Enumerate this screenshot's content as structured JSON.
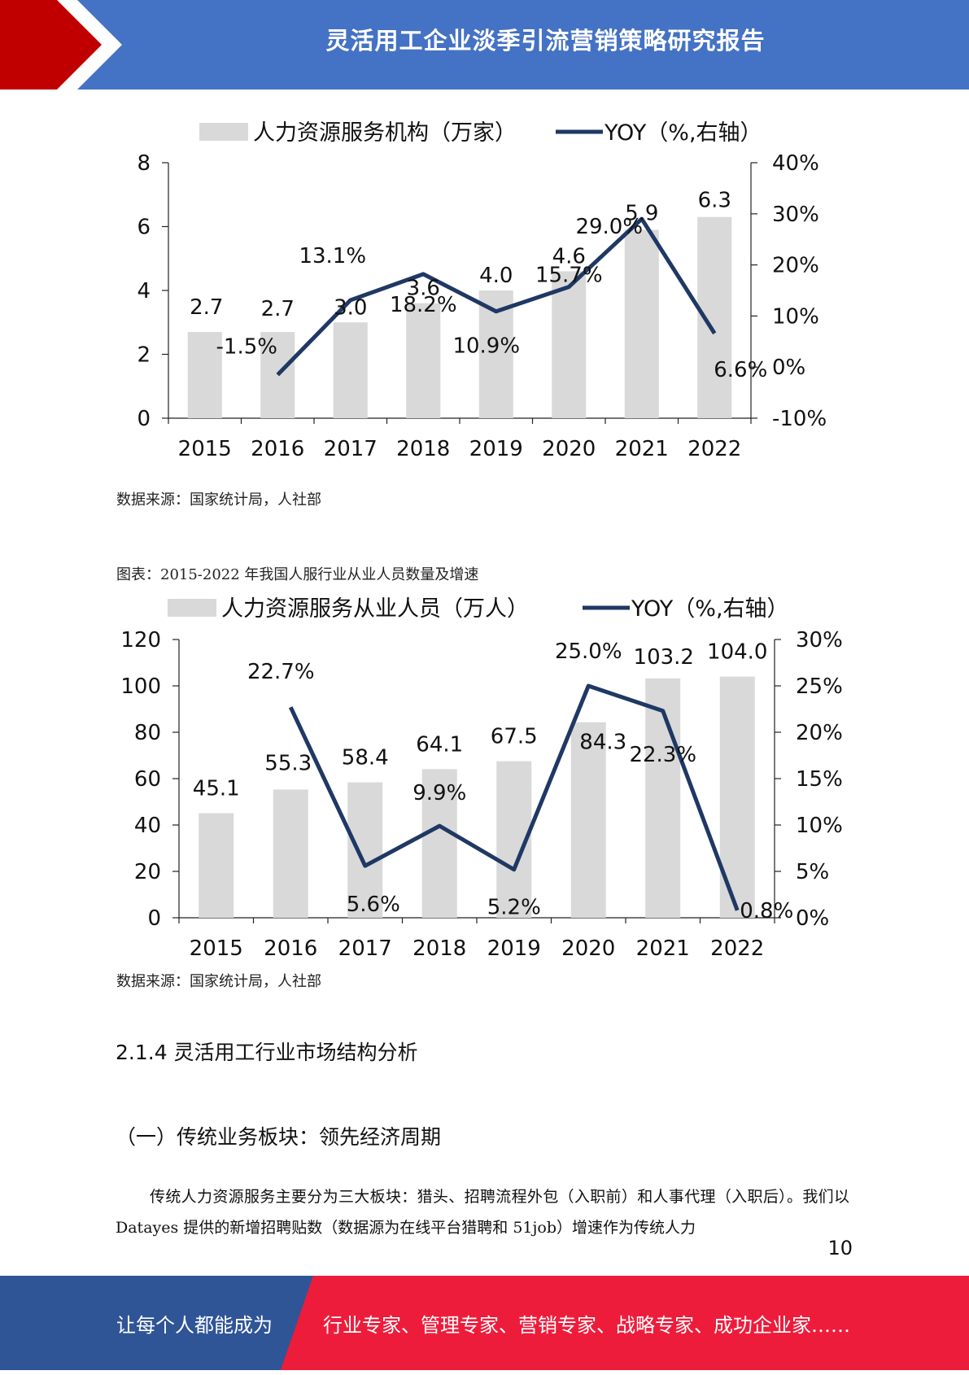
{
  "header": {
    "title": "灵活用工企业淡季引流营销策略研究报告"
  },
  "colors": {
    "header_blue": "#4472c4",
    "accent_red": "#cc0000",
    "footer_blue": "#2f5597",
    "footer_red": "#ee1c3b",
    "bar_gray": "#d9d9d9",
    "line_navy": "#1f3864"
  },
  "chart1_source": "数据来源：国家统计局，人社部",
  "figure2_caption": "图表：2015-2022 年我国人服行业从业人员数量及增速",
  "chart2_source": "数据来源：国家统计局，人社部",
  "chart_data": [
    {
      "type": "bar",
      "categories": [
        "2015",
        "2016",
        "2017",
        "2018",
        "2019",
        "2020",
        "2021",
        "2022"
      ],
      "series": [
        {
          "name": "人力资源服务机构（万家）",
          "type": "bar",
          "axis": "left",
          "values": [
            2.7,
            2.7,
            3.0,
            3.6,
            4.0,
            4.6,
            5.9,
            6.3
          ],
          "labels": [
            "2.7",
            "2.7",
            "3.0",
            "3.6",
            "4.0",
            "4.6",
            "5.9",
            "6.3"
          ]
        },
        {
          "name": "YOY（%,右轴）",
          "type": "line",
          "axis": "right",
          "values": [
            null,
            -1.5,
            13.1,
            18.2,
            10.9,
            15.7,
            29.0,
            6.6
          ],
          "labels": [
            "",
            "-1.5%",
            "13.1%",
            "18.2%",
            "10.9%",
            "15.7%",
            "29.0%",
            "6.6%"
          ]
        }
      ],
      "y_left": {
        "min": 0,
        "max": 8,
        "ticks": [
          "0",
          "2",
          "4",
          "6",
          "8"
        ]
      },
      "y_right": {
        "min": -10,
        "max": 40,
        "ticks": [
          "-10%",
          "0%",
          "10%",
          "20%",
          "30%",
          "40%"
        ]
      },
      "legend_position": "top-center",
      "grid": false
    },
    {
      "type": "bar",
      "categories": [
        "2015",
        "2016",
        "2017",
        "2018",
        "2019",
        "2020",
        "2021",
        "2022"
      ],
      "series": [
        {
          "name": "人力资源服务从业人员（万人）",
          "type": "bar",
          "axis": "left",
          "values": [
            45.1,
            55.3,
            58.4,
            64.1,
            67.5,
            84.3,
            103.2,
            104.0
          ],
          "labels": [
            "45.1",
            "55.3",
            "58.4",
            "64.1",
            "67.5",
            "84.3",
            "103.2",
            "104.0"
          ]
        },
        {
          "name": "YOY（%,右轴）",
          "type": "line",
          "axis": "right",
          "values": [
            null,
            22.7,
            5.6,
            9.9,
            5.2,
            25.0,
            22.3,
            0.8
          ],
          "labels": [
            "",
            "22.7%",
            "5.6%",
            "9.9%",
            "5.2%",
            "25.0%",
            "22.3%",
            "0.8%"
          ]
        }
      ],
      "y_left": {
        "min": 0,
        "max": 120,
        "ticks": [
          "0",
          "20",
          "40",
          "60",
          "80",
          "100",
          "120"
        ]
      },
      "y_right": {
        "min": 0,
        "max": 30,
        "ticks": [
          "0%",
          "5%",
          "10%",
          "15%",
          "20%",
          "25%",
          "30%"
        ]
      },
      "legend_position": "top-center",
      "grid": false
    }
  ],
  "section": {
    "heading": "2.1.4 灵活用工行业市场结构分析",
    "subheading": "（一）传统业务板块：领先经济周期",
    "paragraph": "传统人力资源服务主要分为三大板块：猎头、招聘流程外包（入职前）和人事代理（入职后）。我们以 Datayes 提供的新增招聘贴数（数据源为在线平台猎聘和 51job）增速作为传统人力"
  },
  "page_number": "10",
  "footer": {
    "left_text": "让每个人都能成为",
    "right_text": "行业专家、管理专家、营销专家、战略专家、成功企业家……"
  }
}
